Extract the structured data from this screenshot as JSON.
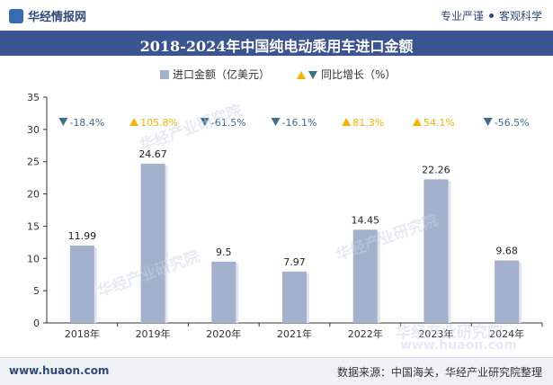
{
  "header": {
    "brand": "华经情报网",
    "tagline_left": "专业严谨",
    "tagline_right": "客观科学"
  },
  "chart_data": {
    "type": "bar",
    "title": "2018-2024年中国纯电动乘用车进口金额",
    "categories": [
      "2018年",
      "2019年",
      "2020年",
      "2021年",
      "2022年",
      "2023年",
      "2024年"
    ],
    "series": [
      {
        "name": "进口金额（亿美元）",
        "values": [
          11.99,
          24.67,
          9.5,
          7.97,
          14.45,
          22.26,
          9.68
        ],
        "color": "#a3b1cc"
      }
    ],
    "yoy": {
      "name": "同比增长（%）",
      "values": [
        -18.4,
        105.8,
        -61.5,
        -16.1,
        81.3,
        54.1,
        -56.5
      ],
      "labels": [
        "-18.4%",
        "105.8%",
        "-61.5%",
        "-16.1%",
        "81.3%",
        "54.1%",
        "-56.5%"
      ],
      "up_color": "#f5b400",
      "down_color": "#3d6e8c"
    },
    "ylim": [
      0,
      35
    ],
    "yticks": [
      0,
      5,
      10,
      15,
      20,
      25,
      30,
      35
    ],
    "legend_position": "top-center",
    "grid": false
  },
  "footer": {
    "url": "www.huaon.com",
    "source": "数据来源：中国海关，华经产业研究院整理"
  },
  "watermark": {
    "text": "华经产业研究院",
    "url": "www.huaon.com"
  }
}
